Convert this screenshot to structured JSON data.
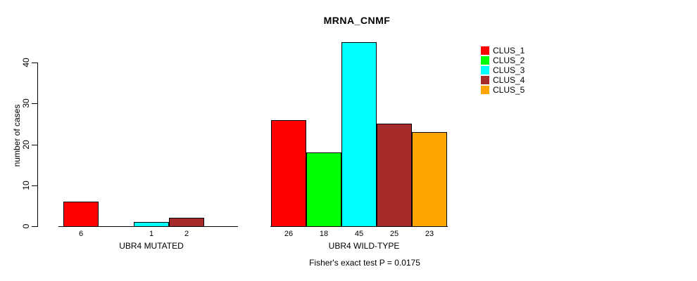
{
  "chart_data": {
    "type": "bar",
    "title": "MRNA_CNMF",
    "ylabel": "number of cases",
    "xlabel": "",
    "ylim": [
      0,
      45
    ],
    "yticks": [
      0,
      10,
      20,
      30,
      40
    ],
    "grid": false,
    "legend_position": "right",
    "legend_title": "",
    "categories": [
      "UBR4 MUTATED",
      "UBR4 WILD-TYPE"
    ],
    "series": [
      {
        "name": "CLUS_1",
        "color": "#FF0000",
        "values": [
          6,
          26
        ]
      },
      {
        "name": "CLUS_2",
        "color": "#00FF00",
        "values": [
          0,
          18
        ]
      },
      {
        "name": "CLUS_3",
        "color": "#00FFFF",
        "values": [
          1,
          45
        ]
      },
      {
        "name": "CLUS_4",
        "color": "#A52A2A",
        "values": [
          2,
          25
        ]
      },
      {
        "name": "CLUS_5",
        "color": "#FFA500",
        "values": [
          0,
          23
        ]
      }
    ],
    "bar_value_labels": {
      "UBR4 MUTATED": [
        "6",
        "",
        "1",
        "2",
        ""
      ],
      "UBR4 WILD-TYPE": [
        "26",
        "18",
        "45",
        "25",
        "23"
      ]
    },
    "annotation": "Fisher's exact test P = 0.0175"
  }
}
